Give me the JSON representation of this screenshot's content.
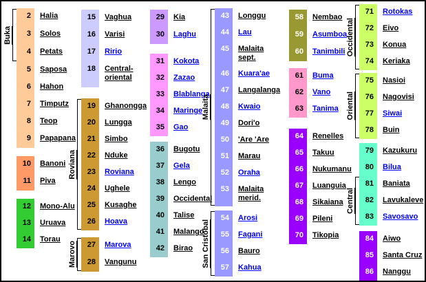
{
  "legend": {
    "link_color": "#0000FF",
    "text_color": "#000000",
    "border_color": "#000000",
    "columns": [
      {
        "blocks": [
          {
            "group": "Buka",
            "color": "#FFCC99",
            "white_nums": false,
            "entries": [
              {
                "n": "2",
                "label": "Halia",
                "link": false
              },
              {
                "n": "3",
                "label": "Solos",
                "link": false
              },
              {
                "n": "4",
                "label": "Petats",
                "link": false
              }
            ]
          },
          {
            "group": "",
            "color": "#FFCC99",
            "white_nums": false,
            "entries": [
              {
                "n": "5",
                "label": "Saposa",
                "link": false
              },
              {
                "n": "6",
                "label": "Hahon",
                "link": false
              },
              {
                "n": "7",
                "label": "Timputz",
                "link": false
              },
              {
                "n": "8",
                "label": "Teop",
                "link": false
              },
              {
                "n": "9",
                "label": "Papapana",
                "link": false
              }
            ]
          },
          {
            "group": "",
            "color": "#FF9966",
            "white_nums": false,
            "entries": [
              {
                "n": "10",
                "label": "Banoni",
                "link": false
              },
              {
                "n": "11",
                "label": "Piva",
                "link": false
              }
            ]
          },
          {
            "group": "",
            "color": "#33CC33",
            "white_nums": false,
            "entries": [
              {
                "n": "12",
                "label": "Mono-Alu",
                "link": false
              },
              {
                "n": "13",
                "label": "Uruava",
                "link": false
              },
              {
                "n": "14",
                "label": "Torau",
                "link": false
              }
            ]
          }
        ]
      },
      {
        "blocks": [
          {
            "group": "",
            "color": "#CCCCFF",
            "white_nums": false,
            "entries": [
              {
                "n": "15",
                "label": "Vaghua",
                "link": false
              },
              {
                "n": "16",
                "label": "Varisi",
                "link": false
              },
              {
                "n": "17",
                "label": "Ririo",
                "link": true
              },
              {
                "n": "18",
                "label": "Central-oriental",
                "link": false,
                "tall": true
              }
            ]
          },
          {
            "group": "Roviana",
            "color": "#CC9933",
            "white_nums": false,
            "entries": [
              {
                "n": "19",
                "label": "Ghanongga",
                "link": false
              },
              {
                "n": "20",
                "label": "Lungga",
                "link": false
              },
              {
                "n": "21",
                "label": "Simbo",
                "link": false
              },
              {
                "n": "22",
                "label": "Nduke",
                "link": false
              },
              {
                "n": "23",
                "label": "Roviana",
                "link": true
              },
              {
                "n": "24",
                "label": "Ughele",
                "link": false
              },
              {
                "n": "25",
                "label": "Kusaghe",
                "link": false
              },
              {
                "n": "26",
                "label": "Hoava",
                "link": true
              }
            ]
          },
          {
            "group": "Marovo",
            "color": "#CC9933",
            "white_nums": false,
            "entries": [
              {
                "n": "27",
                "label": "Marova",
                "link": true
              },
              {
                "n": "28",
                "label": "Vangunu",
                "link": false
              }
            ]
          }
        ]
      },
      {
        "blocks": [
          {
            "group": "",
            "color": "#CC99FF",
            "white_nums": false,
            "entries": [
              {
                "n": "29",
                "label": "Kia",
                "link": false
              },
              {
                "n": "30",
                "label": "Laghu",
                "link": true
              }
            ]
          },
          {
            "group": "",
            "color": "#FF99FF",
            "white_nums": false,
            "entries": [
              {
                "n": "31",
                "label": "Kokota",
                "link": true
              },
              {
                "n": "32",
                "label": "Zazao",
                "link": true
              },
              {
                "n": "33",
                "label": "Blablanga",
                "link": true
              },
              {
                "n": "34",
                "label": "Maringe",
                "link": true
              },
              {
                "n": "35",
                "label": "Gao",
                "link": true
              }
            ]
          },
          {
            "group": "",
            "color": "#99CCCC",
            "white_nums": false,
            "entries": [
              {
                "n": "36",
                "label": "Bugotu",
                "link": false
              },
              {
                "n": "37",
                "label": "Gela",
                "link": true
              },
              {
                "n": "38",
                "label": "Lengo",
                "link": false
              },
              {
                "n": "39",
                "label": "Occidental",
                "link": false
              },
              {
                "n": "40",
                "label": "Talise",
                "link": false
              },
              {
                "n": "41",
                "label": "Malango",
                "link": false
              },
              {
                "n": "42",
                "label": "Birao",
                "link": false
              }
            ]
          }
        ]
      },
      {
        "blocks": [
          {
            "group": "Malaita",
            "color": "#9999FF",
            "white_nums": true,
            "entries": [
              {
                "n": "43",
                "label": "Longgu",
                "link": false
              },
              {
                "n": "44",
                "label": "Lau",
                "link": true
              },
              {
                "n": "45",
                "label": "Malaita sept.",
                "link": false,
                "tall": true
              },
              {
                "n": "46",
                "label": "Kuara'ae",
                "link": true
              },
              {
                "n": "47",
                "label": "Langalanga",
                "link": false
              },
              {
                "n": "48",
                "label": "Kwaio",
                "link": true
              },
              {
                "n": "49",
                "label": "Dori'o",
                "link": false
              },
              {
                "n": "50",
                "label": "'Are 'Are",
                "link": false
              },
              {
                "n": "51",
                "label": "Marau",
                "link": false
              },
              {
                "n": "52",
                "label": "Oraha",
                "link": true
              },
              {
                "n": "53",
                "label": "Malaita merid.",
                "link": false,
                "tall": true
              }
            ]
          },
          {
            "group": "San Cristóbal",
            "color": "#9999FF",
            "white_nums": true,
            "entries": [
              {
                "n": "54",
                "label": "Arosi",
                "link": true
              },
              {
                "n": "55",
                "label": "Fagani",
                "link": true
              },
              {
                "n": "56",
                "label": "Bauro",
                "link": false
              },
              {
                "n": "57",
                "label": "Kahua",
                "link": true
              }
            ]
          }
        ]
      },
      {
        "blocks": [
          {
            "group": "",
            "color": "#999933",
            "white_nums": true,
            "entries": [
              {
                "n": "58",
                "label": "Nembao",
                "link": false
              },
              {
                "n": "59",
                "label": "Asumboa",
                "link": true
              },
              {
                "n": "60",
                "label": "Tanimbili",
                "link": true
              }
            ]
          },
          {
            "group": "",
            "color": "#FF99CC",
            "white_nums": false,
            "entries": [
              {
                "n": "61",
                "label": "Buma",
                "link": true
              },
              {
                "n": "62",
                "label": "Vano",
                "link": true
              },
              {
                "n": "63",
                "label": "Tanima",
                "link": true
              }
            ]
          },
          {
            "group": "",
            "color": "#9900FF",
            "white_nums": true,
            "entries": [
              {
                "n": "64",
                "label": "Renelles",
                "link": false
              },
              {
                "n": "65",
                "label": "Takuu",
                "link": false
              },
              {
                "n": "66",
                "label": "Nukumanu",
                "link": false
              },
              {
                "n": "67",
                "label": "Luanguia",
                "link": false
              },
              {
                "n": "68",
                "label": "Sikaiana",
                "link": false
              },
              {
                "n": "69",
                "label": "Pileni",
                "link": false
              },
              {
                "n": "70",
                "label": "Tikopia",
                "link": false
              }
            ]
          }
        ]
      },
      {
        "blocks": [
          {
            "group": "Occidental",
            "color": "#CCFF66",
            "white_nums": false,
            "entries": [
              {
                "n": "71",
                "label": "Rotokas",
                "link": true
              },
              {
                "n": "72",
                "label": "Eivo",
                "link": false
              },
              {
                "n": "73",
                "label": "Konua",
                "link": false
              },
              {
                "n": "74",
                "label": "Keriaka",
                "link": false
              }
            ]
          },
          {
            "group": "Oriental",
            "color": "#CCFF66",
            "white_nums": false,
            "entries": [
              {
                "n": "75",
                "label": "Nasioi",
                "link": false
              },
              {
                "n": "76",
                "label": "Nagovisi",
                "link": false
              },
              {
                "n": "77",
                "label": "Siwai",
                "link": true
              },
              {
                "n": "78",
                "label": "Buin",
                "link": false
              }
            ]
          },
          {
            "group": "",
            "color": "#66FFCC",
            "white_nums": false,
            "entries": [
              {
                "n": "79",
                "label": "Kazukuru",
                "link": false
              },
              {
                "n": "80",
                "label": "Bilua",
                "link": true
              }
            ]
          },
          {
            "group": "Central",
            "color": "#66FFCC",
            "white_nums": false,
            "entries": [
              {
                "n": "81",
                "label": "Baniata",
                "link": false
              },
              {
                "n": "82",
                "label": "Lavukaleve",
                "link": false
              },
              {
                "n": "83",
                "label": "Savosavo",
                "link": true
              }
            ]
          },
          {
            "group": "",
            "color": "#9900FF",
            "white_nums": true,
            "entries": [
              {
                "n": "84",
                "label": "Aiwo",
                "link": false
              },
              {
                "n": "85",
                "label": "Santa Cruz",
                "link": false
              },
              {
                "n": "86",
                "label": "Nanggu",
                "link": false
              }
            ]
          }
        ]
      }
    ]
  }
}
